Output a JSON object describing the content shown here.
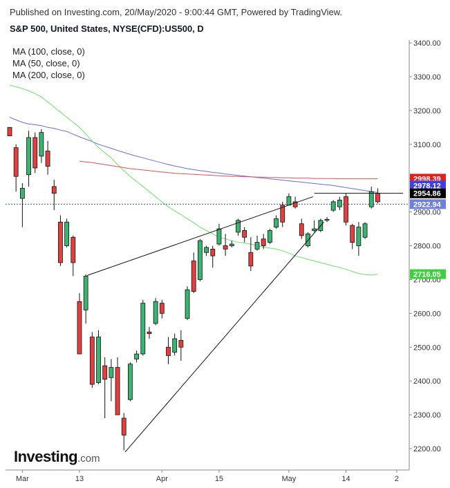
{
  "header": {
    "published": "Published on Investing.com, 20/May/2020 - 9:00:44 GMT, Powered by TradingView.",
    "title": "S&P 500, United States, NYSE(CFD):US500, D"
  },
  "legend": [
    "MA (100, close, 0)",
    "MA (50, close, 0)",
    "MA (200, close, 0)"
  ],
  "logo": {
    "brand": "Investing",
    "suffix": ".com"
  },
  "colors": {
    "up": "#26a69a",
    "up_fill": "#3cb371",
    "down": "#e04040",
    "ma100": "#6a6ae8",
    "ma50": "#6fe06f",
    "ma200": "#e45050",
    "grid": "#e6e6e6"
  },
  "chart_data": {
    "type": "candlestick",
    "ylim": [
      2160,
      3410
    ],
    "y_ticks": [
      2200,
      2300,
      2400,
      2500,
      2600,
      2700,
      2800,
      2900,
      3000,
      3100,
      3200,
      3300,
      3400
    ],
    "y_tick_labels": [
      "2200.00",
      "2300.00",
      "2400.00",
      "2500.00",
      "2600.00",
      "2700.00",
      "2800.00",
      "2900.00",
      "3000.00",
      "3100.00",
      "3200.00",
      "3300.00",
      "3400.00"
    ],
    "x_ticks": [
      {
        "label": "Mar",
        "index": 2
      },
      {
        "label": "13",
        "index": 11
      },
      {
        "label": "Apr",
        "index": 24
      },
      {
        "label": "15",
        "index": 33
      },
      {
        "label": "May",
        "index": 44
      },
      {
        "label": "14",
        "index": 53
      },
      {
        "label": "2",
        "index": 61
      }
    ],
    "candles": [
      {
        "o": 3150,
        "h": 3140,
        "l": 3125,
        "c": 3125
      },
      {
        "o": 3090,
        "h": 3100,
        "l": 2960,
        "c": 3005
      },
      {
        "o": 2940,
        "h": 2985,
        "l": 2855,
        "c": 2970
      },
      {
        "o": 3010,
        "h": 3140,
        "l": 2975,
        "c": 3120
      },
      {
        "o": 3120,
        "h": 3135,
        "l": 3015,
        "c": 3030
      },
      {
        "o": 3065,
        "h": 3145,
        "l": 3045,
        "c": 3135
      },
      {
        "o": 3080,
        "h": 3110,
        "l": 3010,
        "c": 3035
      },
      {
        "o": 2975,
        "h": 2995,
        "l": 2905,
        "c": 2955
      },
      {
        "o": 2870,
        "h": 2890,
        "l": 2740,
        "c": 2750
      },
      {
        "o": 2800,
        "h": 2880,
        "l": 2795,
        "c": 2870
      },
      {
        "o": 2825,
        "h": 2830,
        "l": 2710,
        "c": 2750
      },
      {
        "o": 2635,
        "h": 2660,
        "l": 2485,
        "c": 2480
      },
      {
        "o": 2610,
        "h": 2715,
        "l": 2570,
        "c": 2710
      },
      {
        "o": 2530,
        "h": 2545,
        "l": 2380,
        "c": 2390
      },
      {
        "o": 2395,
        "h": 2550,
        "l": 2390,
        "c": 2530
      },
      {
        "o": 2445,
        "h": 2470,
        "l": 2290,
        "c": 2405
      },
      {
        "o": 2410,
        "h": 2465,
        "l": 2340,
        "c": 2440
      },
      {
        "o": 2440,
        "h": 2470,
        "l": 2300,
        "c": 2300
      },
      {
        "o": 2290,
        "h": 2305,
        "l": 2195,
        "c": 2240
      },
      {
        "o": 2345,
        "h": 2455,
        "l": 2340,
        "c": 2450
      },
      {
        "o": 2465,
        "h": 2490,
        "l": 2455,
        "c": 2480
      },
      {
        "o": 2480,
        "h": 2640,
        "l": 2475,
        "c": 2630
      },
      {
        "o": 2545,
        "h": 2560,
        "l": 2525,
        "c": 2540
      },
      {
        "o": 2570,
        "h": 2645,
        "l": 2565,
        "c": 2635
      },
      {
        "o": 2630,
        "h": 2640,
        "l": 2585,
        "c": 2600
      },
      {
        "o": 2500,
        "h": 2530,
        "l": 2450,
        "c": 2475
      },
      {
        "o": 2485,
        "h": 2540,
        "l": 2475,
        "c": 2525
      },
      {
        "o": 2520,
        "h": 2550,
        "l": 2460,
        "c": 2500
      },
      {
        "o": 2585,
        "h": 2680,
        "l": 2580,
        "c": 2670
      },
      {
        "o": 2755,
        "h": 2780,
        "l": 2660,
        "c": 2665
      },
      {
        "o": 2700,
        "h": 2820,
        "l": 2695,
        "c": 2815
      },
      {
        "o": 2780,
        "h": 2800,
        "l": 2770,
        "c": 2795
      },
      {
        "o": 2790,
        "h": 2800,
        "l": 2735,
        "c": 2770
      },
      {
        "o": 2805,
        "h": 2865,
        "l": 2800,
        "c": 2850
      },
      {
        "o": 2800,
        "h": 2835,
        "l": 2770,
        "c": 2790
      },
      {
        "o": 2800,
        "h": 2815,
        "l": 2795,
        "c": 2805
      },
      {
        "o": 2840,
        "h": 2880,
        "l": 2830,
        "c": 2875
      },
      {
        "o": 2845,
        "h": 2855,
        "l": 2810,
        "c": 2825
      },
      {
        "o": 2780,
        "h": 2825,
        "l": 2725,
        "c": 2740
      },
      {
        "o": 2790,
        "h": 2830,
        "l": 2785,
        "c": 2810
      },
      {
        "o": 2820,
        "h": 2835,
        "l": 2790,
        "c": 2800
      },
      {
        "o": 2810,
        "h": 2850,
        "l": 2805,
        "c": 2845
      },
      {
        "o": 2855,
        "h": 2890,
        "l": 2850,
        "c": 2880
      },
      {
        "o": 2920,
        "h": 2930,
        "l": 2855,
        "c": 2870
      },
      {
        "o": 2920,
        "h": 2955,
        "l": 2920,
        "c": 2945
      },
      {
        "o": 2930,
        "h": 2945,
        "l": 2910,
        "c": 2915
      },
      {
        "o": 2865,
        "h": 2880,
        "l": 2820,
        "c": 2830
      },
      {
        "o": 2800,
        "h": 2840,
        "l": 2795,
        "c": 2835
      },
      {
        "o": 2845,
        "h": 2875,
        "l": 2840,
        "c": 2850
      },
      {
        "o": 2845,
        "h": 2880,
        "l": 2840,
        "c": 2875
      },
      {
        "o": 2875,
        "h": 2885,
        "l": 2870,
        "c": 2878
      },
      {
        "o": 2905,
        "h": 2935,
        "l": 2900,
        "c": 2930
      },
      {
        "o": 2915,
        "h": 2945,
        "l": 2905,
        "c": 2935
      },
      {
        "o": 2945,
        "h": 2955,
        "l": 2860,
        "c": 2870
      },
      {
        "o": 2860,
        "h": 2865,
        "l": 2790,
        "c": 2810
      },
      {
        "o": 2800,
        "h": 2870,
        "l": 2770,
        "c": 2855
      },
      {
        "o": 2825,
        "h": 2870,
        "l": 2820,
        "c": 2865
      },
      {
        "o": 2915,
        "h": 2975,
        "l": 2910,
        "c": 2960
      },
      {
        "o": 2955,
        "h": 2970,
        "l": 2925,
        "c": 2930
      }
    ],
    "moving_averages": [
      {
        "id": "ma100",
        "start_index": 0,
        "values": [
          3180,
          3172,
          3165,
          3160,
          3158,
          3155,
          3150,
          3147,
          3142,
          3138,
          3130,
          3122,
          3115,
          3108,
          3100,
          3094,
          3088,
          3082,
          3076,
          3070,
          3065,
          3060,
          3055,
          3050,
          3045,
          3040,
          3036,
          3032,
          3028,
          3025,
          3022,
          3020,
          3017,
          3015,
          3012,
          3010,
          3008,
          3006,
          3004,
          3002,
          3000,
          2998,
          2996,
          2994,
          2992,
          2990,
          2988,
          2986,
          2984,
          2982,
          2980,
          2978,
          2975,
          2972,
          2969,
          2966,
          2963,
          2960,
          2958
        ]
      },
      {
        "id": "ma50",
        "start_index": 0,
        "values": [
          3275,
          3270,
          3265,
          3258,
          3250,
          3240,
          3225,
          3210,
          3195,
          3180,
          3165,
          3150,
          3130,
          3110,
          3090,
          3075,
          3060,
          3040,
          3022,
          3005,
          2990,
          2975,
          2960,
          2945,
          2930,
          2915,
          2903,
          2892,
          2880,
          2868,
          2855,
          2845,
          2835,
          2825,
          2820,
          2815,
          2810,
          2808,
          2805,
          2800,
          2796,
          2793,
          2790,
          2785,
          2778,
          2770,
          2765,
          2760,
          2755,
          2750,
          2745,
          2740,
          2736,
          2730,
          2724,
          2718,
          2715,
          2713,
          2716
        ]
      },
      {
        "id": "ma200",
        "start_index": 11,
        "values": [
          3050,
          3048,
          3046,
          3043,
          3040,
          3037,
          3034,
          3031,
          3028,
          3026,
          3024,
          3022,
          3020,
          3018,
          3016,
          3014,
          3013,
          3012,
          3011,
          3010,
          3009,
          3008,
          3007,
          3006,
          3005,
          3005,
          3004,
          3004,
          3003,
          3003,
          3002,
          3002,
          3001,
          3001,
          3000,
          3000,
          3000,
          2999,
          2999,
          2999,
          2999,
          2998,
          2998,
          2998,
          2998,
          2998,
          2998,
          2998
        ]
      }
    ],
    "trendlines": [
      {
        "from": {
          "index": 12.2,
          "y": 2712
        },
        "to": {
          "index": 47.8,
          "y": 2945
        }
      },
      {
        "from": {
          "index": 18.2,
          "y": 2190
        },
        "to": {
          "index": 49.5,
          "y": 2870
        }
      },
      {
        "from": {
          "index": 48,
          "y": 2955
        },
        "to": {
          "index": 62,
          "y": 2955
        }
      }
    ],
    "price_tags": [
      {
        "value": 2998.39,
        "label": "2998.39",
        "color": "#e41f1f"
      },
      {
        "value": 2978.12,
        "label": "2978.12",
        "color": "#3f3fde"
      },
      {
        "value": 2954.86,
        "label": "2954.86",
        "color": "#000000"
      },
      {
        "value": 2922.94,
        "label": "2922.94",
        "color": "#6f7fdc"
      },
      {
        "value": 2716.05,
        "label": "2716.05",
        "color": "#3fcf3f"
      }
    ],
    "dotted_level": 2922.94
  }
}
